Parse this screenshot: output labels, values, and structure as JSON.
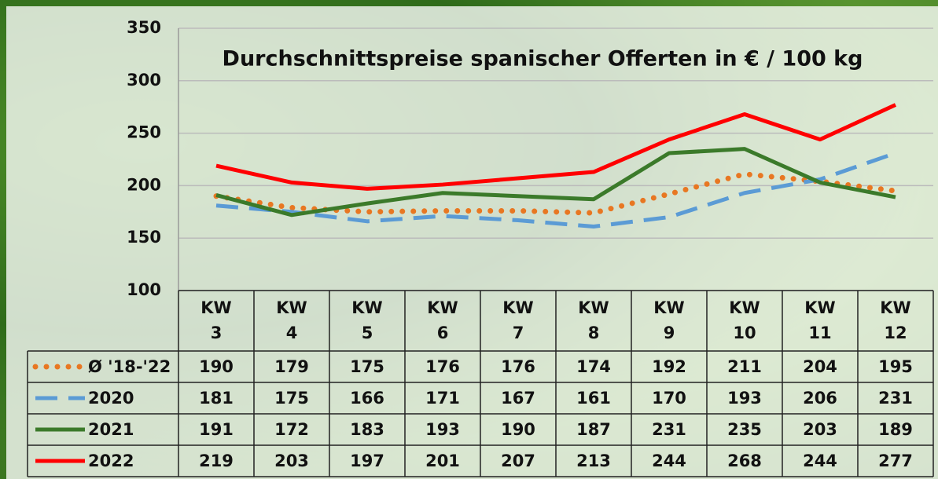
{
  "chart_data": {
    "type": "line",
    "title": "Durchschnittspreise spanischer Offerten in € / 100 kg",
    "categories": [
      "KW 3",
      "KW 4",
      "KW 5",
      "KW 6",
      "KW 7",
      "KW 8",
      "KW 9",
      "KW 10",
      "KW 11",
      "KW 12"
    ],
    "series": [
      {
        "name": "Ø '18-'22",
        "color": "#e87722",
        "line_style": "dotted",
        "values": [
          190,
          179,
          175,
          176,
          176,
          174,
          192,
          211,
          204,
          195
        ]
      },
      {
        "name": "2020",
        "color": "#5b9bd5",
        "line_style": "dashed",
        "values": [
          181,
          175,
          166,
          171,
          167,
          161,
          170,
          193,
          206,
          231
        ]
      },
      {
        "name": "2021",
        "color": "#3b7a2a",
        "line_style": "solid",
        "values": [
          191,
          172,
          183,
          193,
          190,
          187,
          231,
          235,
          203,
          189
        ]
      },
      {
        "name": "2022",
        "color": "#ff0000",
        "line_style": "solid",
        "values": [
          219,
          203,
          197,
          201,
          207,
          213,
          244,
          268,
          244,
          277
        ]
      }
    ],
    "ylim": [
      100,
      350
    ],
    "yticks": [
      100,
      150,
      200,
      250,
      300,
      350
    ],
    "grid": true,
    "data_table": true
  }
}
